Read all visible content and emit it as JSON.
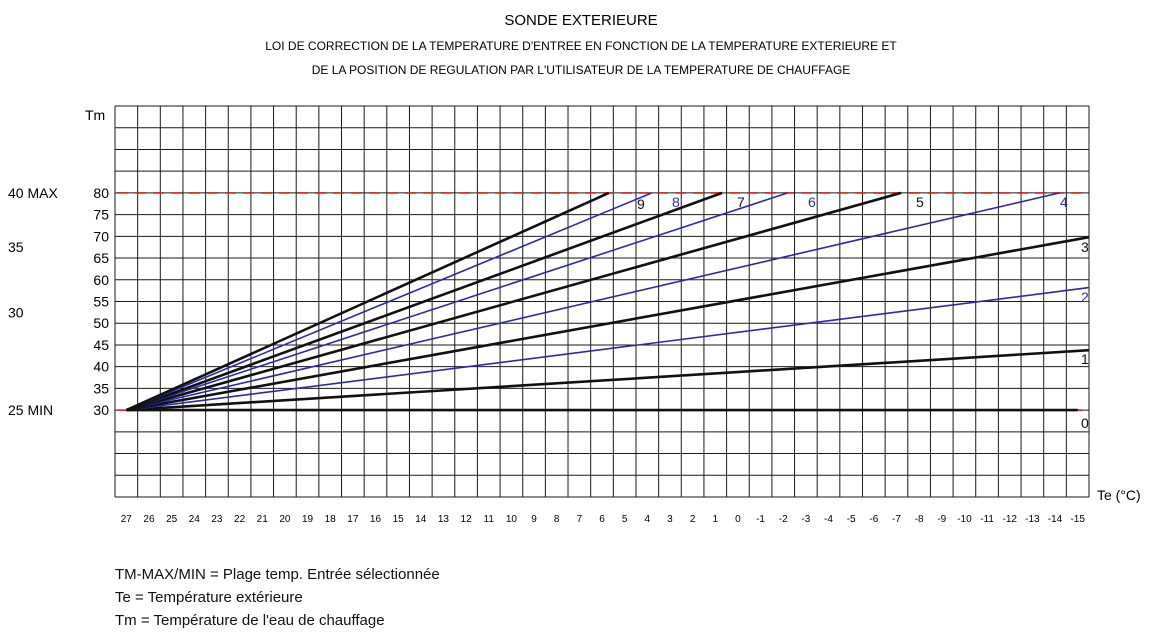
{
  "chart_data": {
    "type": "line",
    "title": "SONDE EXTERIEURE",
    "subtitle_lines": [
      "LOI DE CORRECTION DE LA TEMPERATURE D'ENTREE EN FONCTION DE LA TEMPERATURE EXTERIEURE ET",
      "DE LA POSITION DE REGULATION PAR L'UTILISATEUR DE LA TEMPERATURE DE CHAUFFAGE"
    ],
    "ylabel": "Tm",
    "xlabel": "Te (°C)",
    "xlim": [
      27.5,
      -15.5
    ],
    "ylim": [
      10,
      100
    ],
    "x_ticks": [
      27,
      26,
      25,
      24,
      23,
      22,
      21,
      20,
      19,
      18,
      17,
      16,
      15,
      14,
      13,
      12,
      11,
      10,
      9,
      8,
      7,
      6,
      5,
      4,
      3,
      2,
      1,
      0,
      -1,
      -2,
      -3,
      -4,
      -5,
      -6,
      -7,
      -8,
      -9,
      -10,
      -11,
      -12,
      -13,
      -14,
      -15
    ],
    "y_ticks": [
      30,
      35,
      40,
      45,
      50,
      55,
      60,
      65,
      70,
      75,
      80
    ],
    "outer_labels": [
      {
        "text": "40  MAX",
        "y": 80
      },
      {
        "text": "35",
        "y": 67.5
      },
      {
        "text": "30",
        "y": 52.5
      },
      {
        "text": "25  MIN",
        "y": 30
      }
    ],
    "ref_lines": [
      {
        "name": "MAX",
        "y": 80,
        "color": "#d42020"
      },
      {
        "name": "MIN",
        "y": 30,
        "color": "#d42020"
      }
    ],
    "grid": true,
    "series": [
      {
        "name": "0",
        "color": "#111111",
        "points": [
          [
            27,
            30
          ],
          [
            -15,
            30
          ]
        ]
      },
      {
        "name": "1",
        "color": "#111111",
        "points": [
          [
            27,
            30
          ],
          [
            -15.5,
            43.8
          ]
        ]
      },
      {
        "name": "2",
        "color": "#2a2aaa",
        "points": [
          [
            27,
            30
          ],
          [
            -15.5,
            58.2
          ]
        ]
      },
      {
        "name": "3",
        "color": "#111111",
        "points": [
          [
            27,
            30
          ],
          [
            -15.5,
            69.8
          ]
        ]
      },
      {
        "name": "4",
        "color": "#2a2aaa",
        "points": [
          [
            27,
            30
          ],
          [
            -14.2,
            80
          ]
        ]
      },
      {
        "name": "5",
        "color": "#111111",
        "points": [
          [
            27,
            30
          ],
          [
            -7.2,
            80
          ]
        ]
      },
      {
        "name": "6",
        "color": "#2a2aaa",
        "points": [
          [
            27,
            30
          ],
          [
            -2.2,
            80
          ]
        ]
      },
      {
        "name": "7",
        "color": "#111111",
        "points": [
          [
            27,
            30
          ],
          [
            0.7,
            80
          ]
        ]
      },
      {
        "name": "8",
        "color": "#2a2aaa",
        "points": [
          [
            27,
            30
          ],
          [
            3.8,
            80
          ]
        ]
      },
      {
        "name": "9",
        "color": "#111111",
        "points": [
          [
            27,
            30
          ],
          [
            5.7,
            80
          ]
        ]
      }
    ]
  },
  "legend_lines": [
    "TM-MAX/MIN = Plage temp. Entrée sélectionnée",
    "Te = Température extérieure",
    "Tm = Température de l'eau de chauffage"
  ]
}
